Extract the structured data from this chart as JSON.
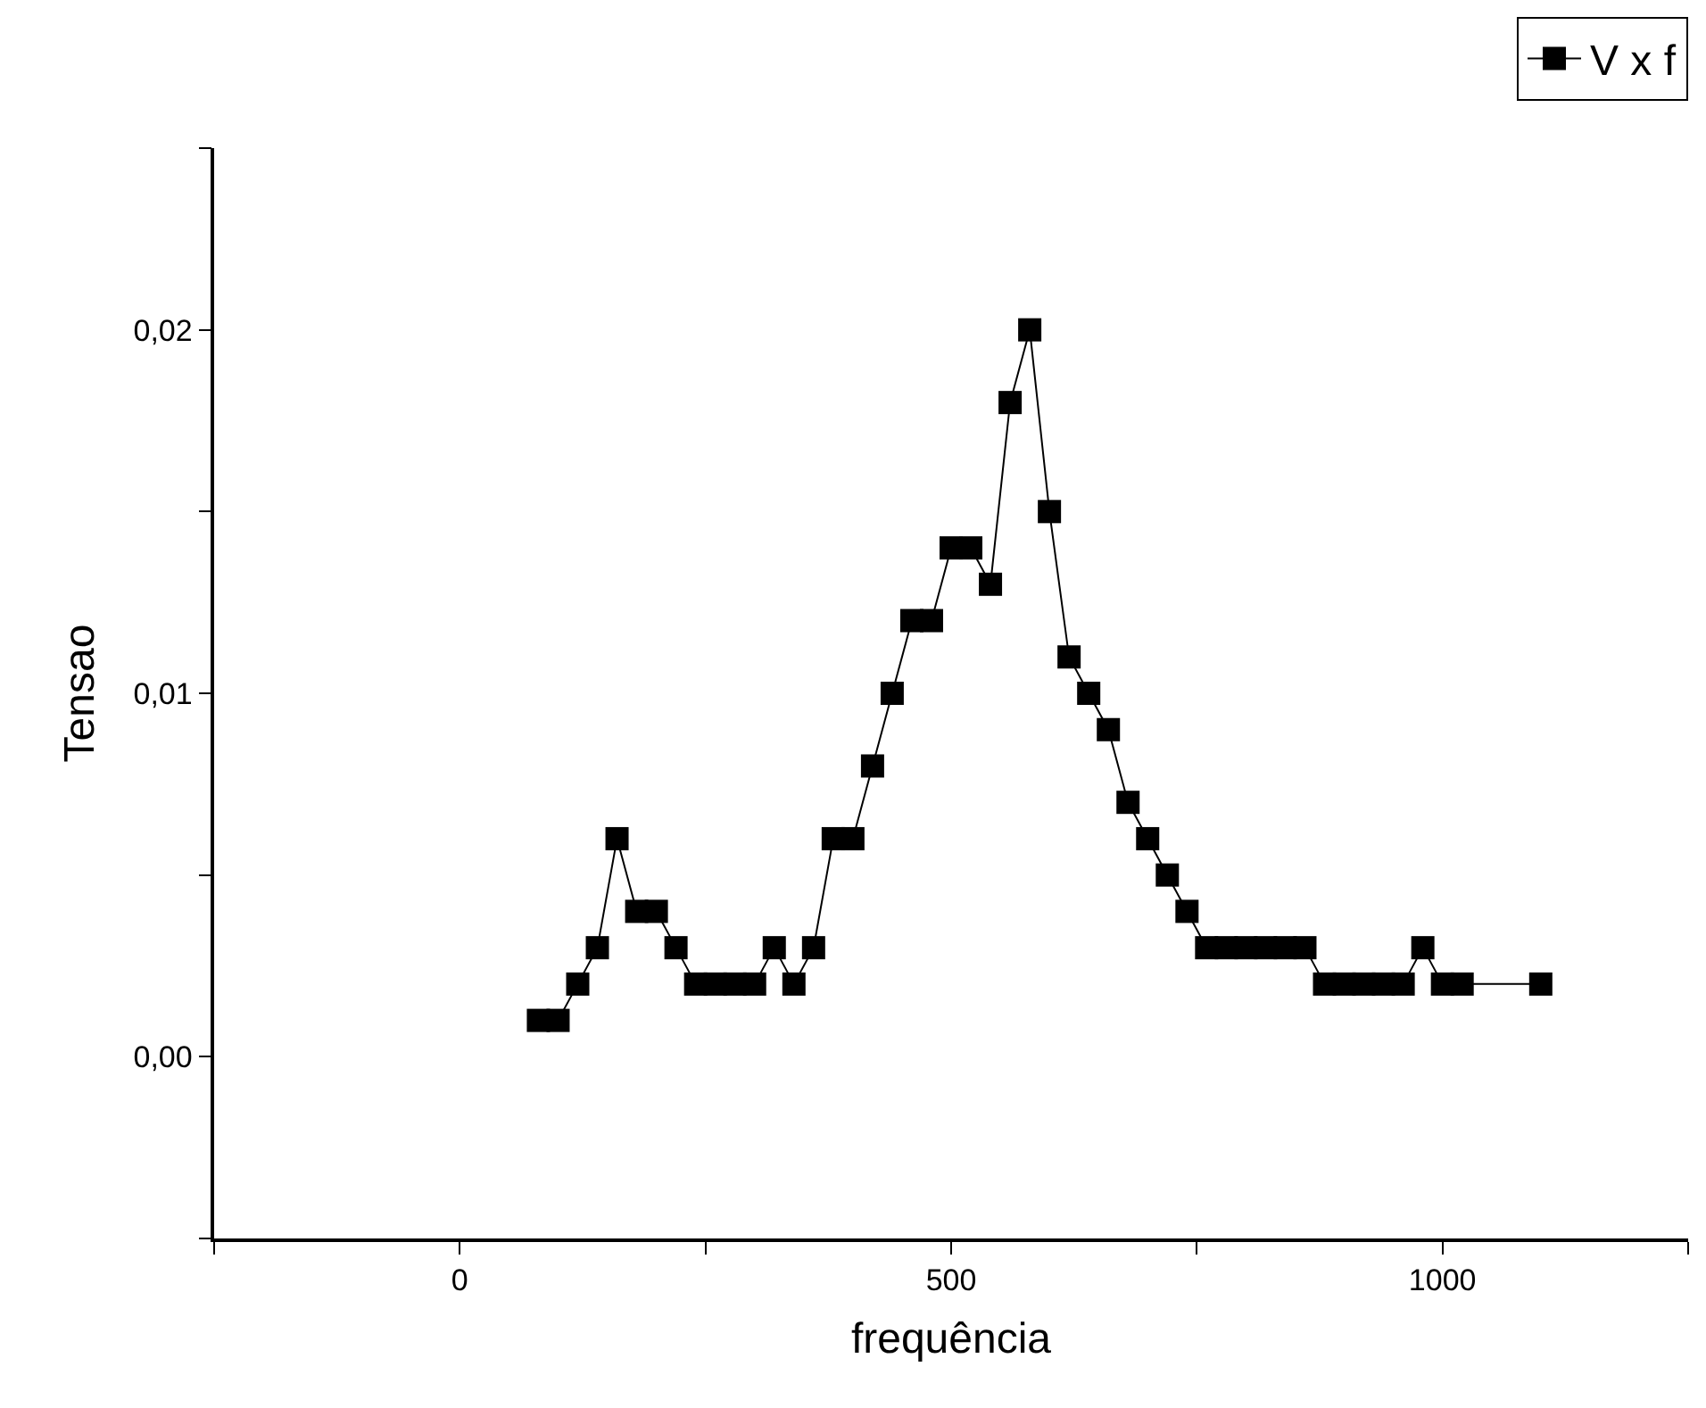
{
  "chart_data": {
    "type": "line",
    "xlabel": "frequência",
    "ylabel": "Tensao",
    "x": [
      80,
      100,
      120,
      140,
      160,
      180,
      200,
      220,
      240,
      260,
      280,
      300,
      320,
      340,
      360,
      380,
      400,
      420,
      440,
      460,
      480,
      500,
      520,
      540,
      560,
      580,
      600,
      620,
      640,
      660,
      680,
      700,
      720,
      740,
      760,
      780,
      800,
      820,
      840,
      860,
      880,
      900,
      920,
      940,
      960,
      980,
      1000,
      1020,
      1100
    ],
    "series": [
      {
        "name": "V x f",
        "color": "#000000",
        "values": [
          0.001,
          0.001,
          0.002,
          0.003,
          0.006,
          0.004,
          0.004,
          0.003,
          0.002,
          0.002,
          0.002,
          0.002,
          0.003,
          0.002,
          0.003,
          0.006,
          0.006,
          0.008,
          0.01,
          0.012,
          0.012,
          0.014,
          0.014,
          0.013,
          0.018,
          0.02,
          0.015,
          0.011,
          0.01,
          0.009,
          0.007,
          0.006,
          0.005,
          0.004,
          0.003,
          0.003,
          0.003,
          0.003,
          0.003,
          0.003,
          0.002,
          0.002,
          0.002,
          0.002,
          0.002,
          0.003,
          0.002,
          0.002,
          0.002
        ]
      }
    ],
    "xlim": [
      -250,
      1250
    ],
    "xticks": [
      {
        "value": -250,
        "label": null
      },
      0,
      {
        "value": 250,
        "label": null
      },
      500,
      {
        "value": 750,
        "label": null
      },
      1000,
      {
        "value": 1250,
        "label": null
      }
    ],
    "ylim": [
      -0.005,
      0.025
    ],
    "yticks": [
      {
        "value": -0.005,
        "label": null
      },
      {
        "value": 0,
        "label": "0,00"
      },
      {
        "value": 0.005,
        "label": null
      },
      {
        "value": 0.01,
        "label": "0,01"
      },
      {
        "value": 0.015,
        "label": null
      },
      {
        "value": 0.02,
        "label": "0,02"
      },
      {
        "value": 0.025,
        "label": null
      }
    ],
    "legend": "top right",
    "marker": "square",
    "line_style": "solid"
  }
}
